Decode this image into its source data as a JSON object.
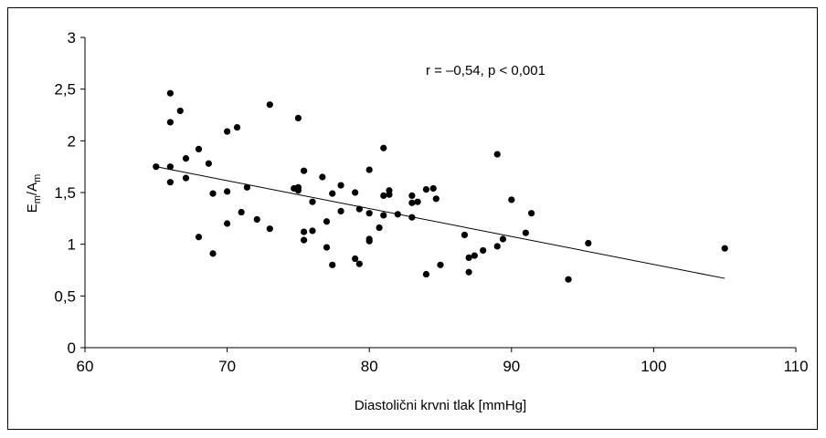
{
  "chart_data": {
    "type": "scatter",
    "title": "",
    "xlabel": "Diastolični krvni tlak [mmHg]",
    "ylabel_main": "E",
    "ylabel_sub1": "m",
    "ylabel_mid": "/A",
    "ylabel_sub2": "m",
    "xlim": [
      60,
      110
    ],
    "ylim": [
      0,
      3
    ],
    "x_ticks": [
      60,
      70,
      80,
      90,
      100,
      110
    ],
    "x_tick_labels": [
      "60",
      "70",
      "80",
      "90",
      "100",
      "110"
    ],
    "y_ticks": [
      0,
      0.5,
      1,
      1.5,
      2,
      2.5,
      3
    ],
    "y_tick_labels": [
      "0",
      "0,5",
      "1",
      "1,5",
      "2",
      "2,5",
      "3"
    ],
    "grid": false,
    "annotation": "r = –0,54, p < 0,001",
    "trendline": {
      "x": [
        65,
        105
      ],
      "y": [
        1.75,
        0.67
      ]
    },
    "points": [
      [
        65.0,
        1.75
      ],
      [
        66.0,
        2.46
      ],
      [
        66.0,
        2.18
      ],
      [
        66.0,
        1.75
      ],
      [
        66.0,
        1.6
      ],
      [
        66.7,
        2.29
      ],
      [
        67.1,
        1.83
      ],
      [
        67.1,
        1.64
      ],
      [
        68.0,
        1.92
      ],
      [
        68.0,
        1.07
      ],
      [
        68.7,
        1.78
      ],
      [
        69.0,
        1.49
      ],
      [
        69.0,
        0.91
      ],
      [
        70.0,
        2.09
      ],
      [
        70.0,
        1.51
      ],
      [
        70.0,
        1.2
      ],
      [
        70.7,
        2.13
      ],
      [
        71.0,
        1.31
      ],
      [
        71.4,
        1.55
      ],
      [
        72.1,
        1.24
      ],
      [
        73.0,
        2.35
      ],
      [
        73.0,
        1.15
      ],
      [
        74.7,
        1.54
      ],
      [
        75.0,
        2.22
      ],
      [
        75.0,
        1.55
      ],
      [
        75.0,
        1.52
      ],
      [
        75.4,
        1.71
      ],
      [
        75.4,
        1.12
      ],
      [
        75.4,
        1.04
      ],
      [
        76.0,
        1.41
      ],
      [
        76.0,
        1.13
      ],
      [
        76.7,
        1.65
      ],
      [
        77.0,
        1.22
      ],
      [
        77.0,
        0.97
      ],
      [
        77.4,
        1.49
      ],
      [
        77.4,
        0.8
      ],
      [
        78.0,
        1.57
      ],
      [
        78.0,
        1.32
      ],
      [
        79.0,
        1.5
      ],
      [
        79.0,
        0.86
      ],
      [
        79.3,
        1.34
      ],
      [
        79.3,
        0.81
      ],
      [
        80.0,
        1.72
      ],
      [
        80.0,
        1.3
      ],
      [
        80.0,
        1.05
      ],
      [
        80.0,
        1.03
      ],
      [
        80.7,
        1.16
      ],
      [
        81.0,
        1.93
      ],
      [
        81.0,
        1.47
      ],
      [
        81.0,
        1.28
      ],
      [
        81.4,
        1.52
      ],
      [
        81.4,
        1.48
      ],
      [
        82.0,
        1.29
      ],
      [
        83.0,
        1.47
      ],
      [
        83.0,
        1.4
      ],
      [
        83.0,
        1.26
      ],
      [
        83.4,
        1.41
      ],
      [
        84.0,
        1.53
      ],
      [
        84.0,
        0.71
      ],
      [
        84.5,
        1.54
      ],
      [
        84.7,
        1.44
      ],
      [
        85.0,
        0.8
      ],
      [
        86.7,
        1.09
      ],
      [
        87.0,
        0.87
      ],
      [
        87.0,
        0.73
      ],
      [
        87.4,
        0.89
      ],
      [
        88.0,
        0.94
      ],
      [
        89.0,
        1.87
      ],
      [
        89.0,
        0.98
      ],
      [
        89.4,
        1.05
      ],
      [
        90.0,
        1.43
      ],
      [
        91.0,
        1.11
      ],
      [
        91.4,
        1.3
      ],
      [
        94.0,
        0.66
      ],
      [
        95.4,
        1.01
      ],
      [
        105.0,
        0.96
      ]
    ]
  }
}
